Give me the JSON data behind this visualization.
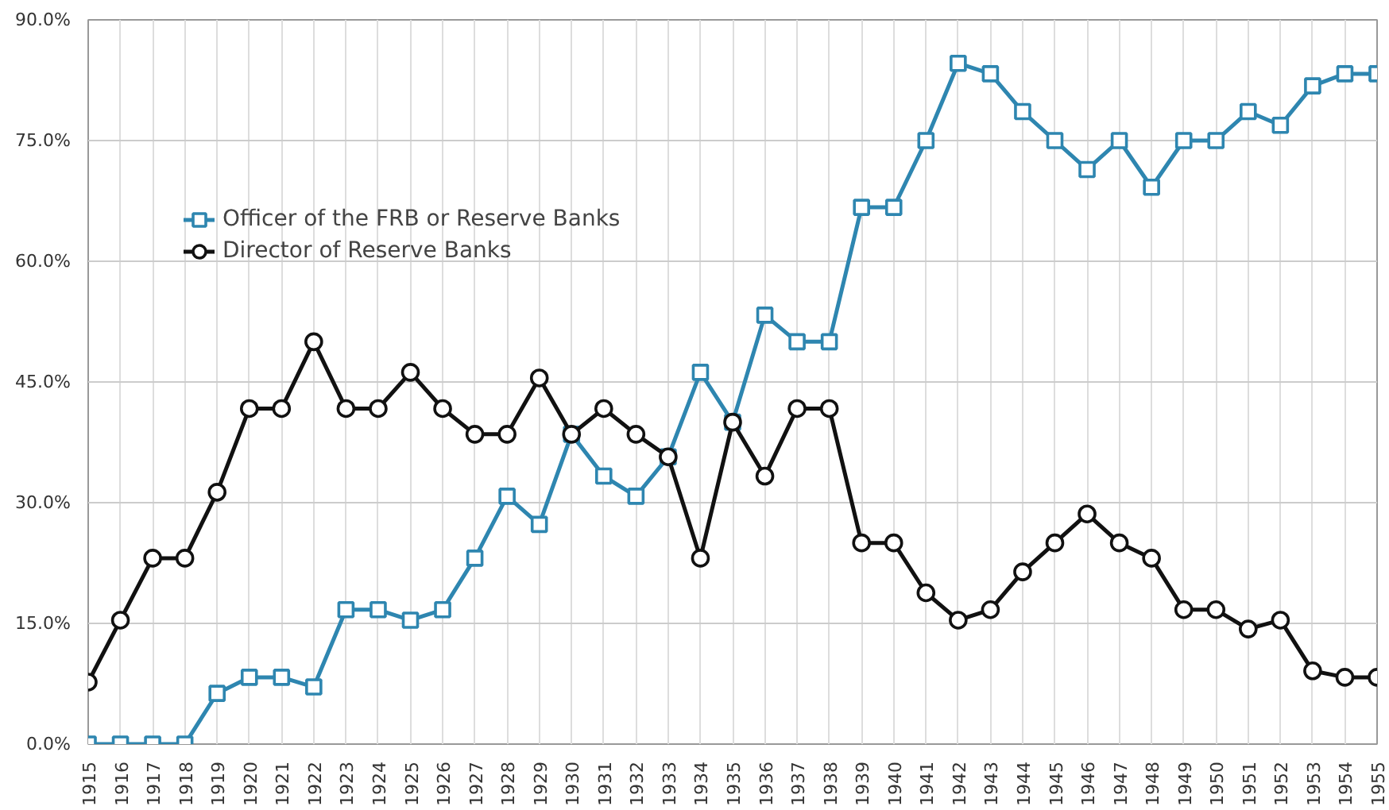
{
  "chart_data": {
    "type": "line",
    "categories": [
      "1915",
      "1916",
      "1917",
      "1918",
      "1919",
      "1920",
      "1921",
      "1922",
      "1923",
      "1924",
      "1925",
      "1926",
      "1927",
      "1928",
      "1929",
      "1930",
      "1931",
      "1932",
      "1933",
      "1934",
      "1935",
      "1936",
      "1937",
      "1938",
      "1939",
      "1940",
      "1941",
      "1942",
      "1943",
      "1944",
      "1945",
      "1946",
      "1947",
      "1948",
      "1949",
      "1950",
      "1951",
      "1952",
      "1953",
      "1954",
      "1955"
    ],
    "series": [
      {
        "name": "Officer of the FRB or Reserve Banks",
        "color": "#2e86b0",
        "marker": "square",
        "values": [
          0,
          0,
          0,
          0,
          6.3,
          8.3,
          8.3,
          7.1,
          16.7,
          16.7,
          15.4,
          16.7,
          23.1,
          30.8,
          27.3,
          38.5,
          33.3,
          30.8,
          35.7,
          46.2,
          40.0,
          53.3,
          50.0,
          50.0,
          66.7,
          66.7,
          75.0,
          84.6,
          83.3,
          78.6,
          75.0,
          71.4,
          75.0,
          69.2,
          75.0,
          75.0,
          78.6,
          76.9,
          81.8,
          83.3,
          83.3
        ]
      },
      {
        "name": "Director of Reserve Banks",
        "color": "#111111",
        "marker": "circle",
        "values": [
          7.7,
          15.4,
          23.1,
          23.1,
          31.3,
          41.7,
          41.7,
          50.0,
          41.7,
          41.7,
          46.2,
          41.7,
          38.5,
          38.5,
          45.5,
          38.5,
          41.7,
          38.5,
          35.7,
          23.1,
          40.0,
          33.3,
          41.7,
          41.7,
          25.0,
          25.0,
          18.8,
          15.4,
          16.7,
          21.4,
          25.0,
          28.6,
          25.0,
          23.1,
          16.7,
          16.7,
          14.3,
          15.4,
          9.1,
          8.3,
          8.3
        ]
      }
    ],
    "ylim": [
      0,
      90
    ],
    "yticks": [
      {
        "value": 0,
        "label": "0.0%"
      },
      {
        "value": 15,
        "label": "15.0%"
      },
      {
        "value": 30,
        "label": "30.0%"
      },
      {
        "value": 45,
        "label": "45.0%"
      },
      {
        "value": 60,
        "label": "60.0%"
      },
      {
        "value": 75,
        "label": "75.0%"
      },
      {
        "value": 90,
        "label": "90.0%"
      }
    ],
    "grid": true,
    "legend": "top left",
    "line_style": "solid"
  }
}
